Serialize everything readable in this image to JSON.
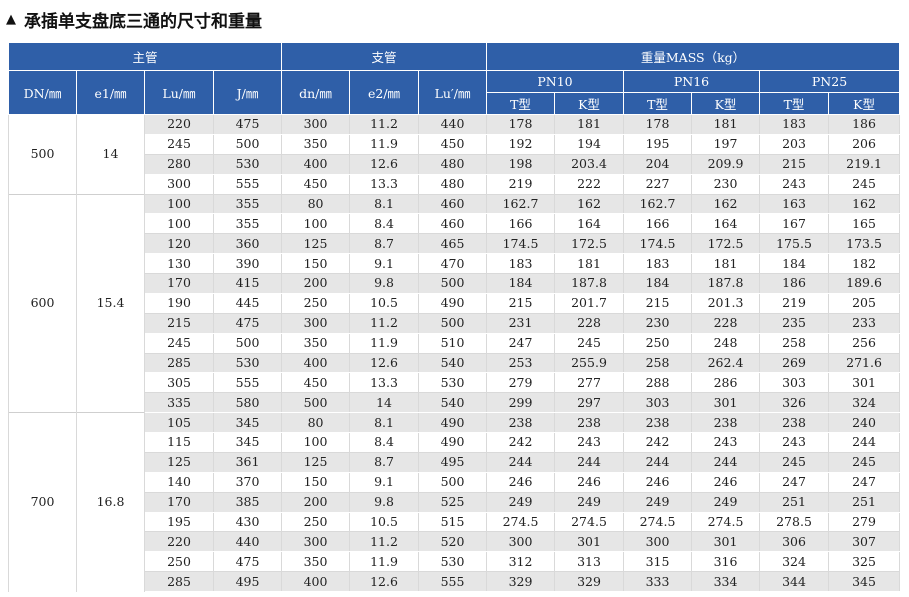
{
  "title": "承插单支盘底三通的尺寸和重量",
  "icons": {
    "title_marker": "triangle-up-icon"
  },
  "colors": {
    "header_bg": "#2F5FA8",
    "group_bg": "#e6e6e6"
  },
  "header": {
    "main_pipe": "主管",
    "branch_pipe": "支管",
    "mass": "重量MASS（kg）",
    "DN": "DN/㎜",
    "e1": "e1/㎜",
    "Lu": "Lu/㎜",
    "J": "J/㎜",
    "dn": "dn/㎜",
    "e2": "e2/㎜",
    "Lu2": "Lu′/㎜",
    "pn10": "PN10",
    "pn16": "PN16",
    "pn25": "PN25",
    "t_type": "T型",
    "k_type": "K型"
  },
  "groups": [
    {
      "DN": "500",
      "e1": "14",
      "rows": [
        [
          "220",
          "475",
          "300",
          "11.2",
          "440",
          "178",
          "181",
          "178",
          "181",
          "183",
          "186"
        ],
        [
          "245",
          "500",
          "350",
          "11.9",
          "450",
          "192",
          "194",
          "195",
          "197",
          "203",
          "206"
        ],
        [
          "280",
          "530",
          "400",
          "12.6",
          "480",
          "198",
          "203.4",
          "204",
          "209.9",
          "215",
          "219.1"
        ],
        [
          "300",
          "555",
          "450",
          "13.3",
          "480",
          "219",
          "222",
          "227",
          "230",
          "243",
          "245"
        ]
      ]
    },
    {
      "DN": "600",
      "e1": "15.4",
      "rows": [
        [
          "100",
          "355",
          "80",
          "8.1",
          "460",
          "162.7",
          "162",
          "162.7",
          "162",
          "163",
          "162"
        ],
        [
          "100",
          "355",
          "100",
          "8.4",
          "460",
          "166",
          "164",
          "166",
          "164",
          "167",
          "165"
        ],
        [
          "120",
          "360",
          "125",
          "8.7",
          "465",
          "174.5",
          "172.5",
          "174.5",
          "172.5",
          "175.5",
          "173.5"
        ],
        [
          "130",
          "390",
          "150",
          "9.1",
          "470",
          "183",
          "181",
          "183",
          "181",
          "184",
          "182"
        ],
        [
          "170",
          "415",
          "200",
          "9.8",
          "500",
          "184",
          "187.8",
          "184",
          "187.8",
          "186",
          "189.6"
        ],
        [
          "190",
          "445",
          "250",
          "10.5",
          "490",
          "215",
          "201.7",
          "215",
          "201.3",
          "219",
          "205"
        ],
        [
          "215",
          "475",
          "300",
          "11.2",
          "500",
          "231",
          "228",
          "230",
          "228",
          "235",
          "233"
        ],
        [
          "245",
          "500",
          "350",
          "11.9",
          "510",
          "247",
          "245",
          "250",
          "248",
          "258",
          "256"
        ],
        [
          "285",
          "530",
          "400",
          "12.6",
          "540",
          "253",
          "255.9",
          "258",
          "262.4",
          "269",
          "271.6"
        ],
        [
          "305",
          "555",
          "450",
          "13.3",
          "530",
          "279",
          "277",
          "288",
          "286",
          "303",
          "301"
        ],
        [
          "335",
          "580",
          "500",
          "14",
          "540",
          "299",
          "297",
          "303",
          "301",
          "326",
          "324"
        ]
      ]
    },
    {
      "DN": "700",
      "e1": "16.8",
      "rows": [
        [
          "105",
          "345",
          "80",
          "8.1",
          "490",
          "238",
          "238",
          "238",
          "238",
          "238",
          "240"
        ],
        [
          "115",
          "345",
          "100",
          "8.4",
          "490",
          "242",
          "243",
          "242",
          "243",
          "243",
          "244"
        ],
        [
          "125",
          "361",
          "125",
          "8.7",
          "495",
          "244",
          "244",
          "244",
          "244",
          "245",
          "245"
        ],
        [
          "140",
          "370",
          "150",
          "9.1",
          "500",
          "246",
          "246",
          "246",
          "246",
          "247",
          "247"
        ],
        [
          "170",
          "385",
          "200",
          "9.8",
          "525",
          "249",
          "249",
          "249",
          "249",
          "251",
          "251"
        ],
        [
          "195",
          "430",
          "250",
          "10.5",
          "515",
          "274.5",
          "274.5",
          "274.5",
          "274.5",
          "278.5",
          "279"
        ],
        [
          "220",
          "440",
          "300",
          "11.2",
          "520",
          "300",
          "301",
          "300",
          "301",
          "306",
          "307"
        ],
        [
          "250",
          "475",
          "350",
          "11.9",
          "530",
          "312",
          "313",
          "315",
          "316",
          "324",
          "325"
        ],
        [
          "285",
          "495",
          "400",
          "12.6",
          "555",
          "329",
          "329",
          "333",
          "334",
          "344",
          "345"
        ]
      ]
    }
  ]
}
